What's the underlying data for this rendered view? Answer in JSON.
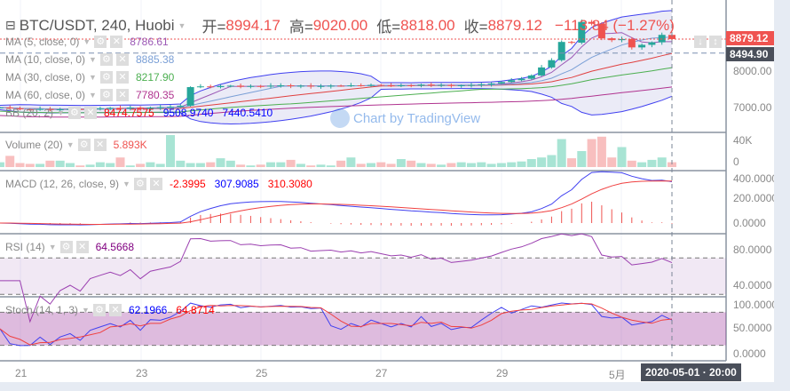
{
  "header": {
    "symbol": "BTC/USDT, 240, Huobi",
    "open_label": "开=",
    "open": "8994.17",
    "high_label": "高=",
    "high": "9020.00",
    "low_label": "低=",
    "low": "8818.00",
    "close_label": "收=",
    "close": "8879.12",
    "change": "−113.84 (−1.27%)"
  },
  "indicators": {
    "ma5": {
      "label": "MA (5, close, 0)",
      "value": "8786.61",
      "color": "#9b59b6"
    },
    "ma10": {
      "label": "MA (10, close, 0)",
      "value": "8885.38",
      "color": "#7a9fd6"
    },
    "ma30": {
      "label": "MA (30, close, 0)",
      "value": "8217.90",
      "color": "#4caf50"
    },
    "ma60": {
      "label": "MA (60, close, 0)",
      "value": "7780.35",
      "color": "#b0338f"
    },
    "bb": {
      "label": "BB (20, 2)",
      "v1": "8474.7575",
      "v2": "9508.9740",
      "v3": "7440.5410"
    },
    "volume": {
      "label": "Volume (20)",
      "value": "5.893K"
    },
    "macd": {
      "label": "MACD (12, 26, close, 9)",
      "v1": "-2.3995",
      "v2": "307.9085",
      "v3": "310.3080"
    },
    "rsi": {
      "label": "RSI (14)",
      "value": "64.5668"
    },
    "stoch": {
      "label": "Stoch (14, 1, 3)",
      "v1": "62.1966",
      "v2": "64.8714"
    }
  },
  "watermark": "Chart by TradingView",
  "price_axis": {
    "last": "8879.12",
    "ma": "8494.90",
    "ticks": [
      "8000.00",
      "7000.00"
    ]
  },
  "volume_axis": [
    "40K",
    "0"
  ],
  "macd_axis": [
    "400.0000",
    "200.0000",
    "0.0000"
  ],
  "rsi_axis": [
    "80.0000",
    "40.0000"
  ],
  "stoch_axis": [
    "100.0000",
    "50.0000",
    "0.0000"
  ],
  "time_axis": [
    "21",
    "23",
    "25",
    "27",
    "29",
    "5月"
  ],
  "crosshair_time": "2020-05-01 · 20:00",
  "colors": {
    "up": "#26a69a",
    "down": "#ef5350",
    "up_vol": "#a8e4d4",
    "down_vol": "#f8bfbf"
  },
  "closes": [
    7000,
    6980,
    6950,
    6940,
    6960,
    6930,
    6950,
    6960,
    6940,
    6970,
    6980,
    6990,
    6980,
    7000,
    6970,
    7000,
    7010,
    7020,
    7050,
    7560,
    7580,
    7560,
    7590,
    7600,
    7570,
    7590,
    7580,
    7600,
    7610,
    7590,
    7600,
    7580,
    7590,
    7600,
    7590,
    7610,
    7600,
    7620,
    7610,
    7600,
    7610,
    7600,
    7630,
    7610,
    7620,
    7600,
    7610,
    7620,
    7640,
    7660,
    7700,
    7750,
    7790,
    7880,
    8100,
    8300,
    8800,
    8780,
    9350,
    9300,
    8900,
    8850,
    8880,
    8650,
    8720,
    8790,
    8994,
    8879
  ],
  "volumes": [
    6,
    14,
    5,
    4,
    4,
    8,
    8,
    5,
    2,
    3,
    6,
    5,
    12,
    2,
    4,
    6,
    4,
    40,
    8,
    5,
    5,
    6,
    11,
    8,
    3,
    2,
    3,
    6,
    6,
    9,
    4,
    2,
    3,
    2,
    8,
    12,
    4,
    5,
    6,
    4,
    10,
    8,
    5,
    4,
    3,
    5,
    6,
    5,
    6,
    4,
    5,
    6,
    7,
    10,
    12,
    15,
    35,
    11,
    20,
    35,
    38,
    12,
    25,
    8,
    6,
    9,
    12,
    6
  ]
}
